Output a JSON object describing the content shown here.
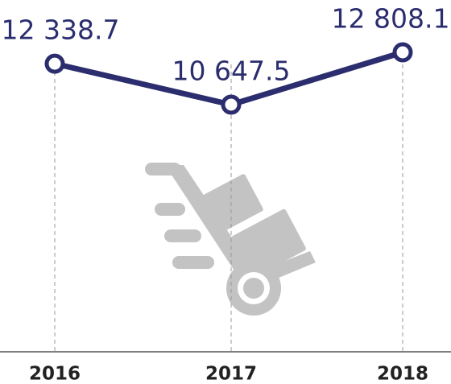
{
  "chart_data": {
    "type": "line",
    "categories": [
      "2016",
      "2017",
      "2018"
    ],
    "series": [
      {
        "color": "#2b2d6e",
        "values": [
          12338.7,
          10647.5,
          12808.1
        ],
        "value_labels": [
          "12 338.7",
          "10 647.5",
          "12 808.1"
        ]
      }
    ]
  }
}
